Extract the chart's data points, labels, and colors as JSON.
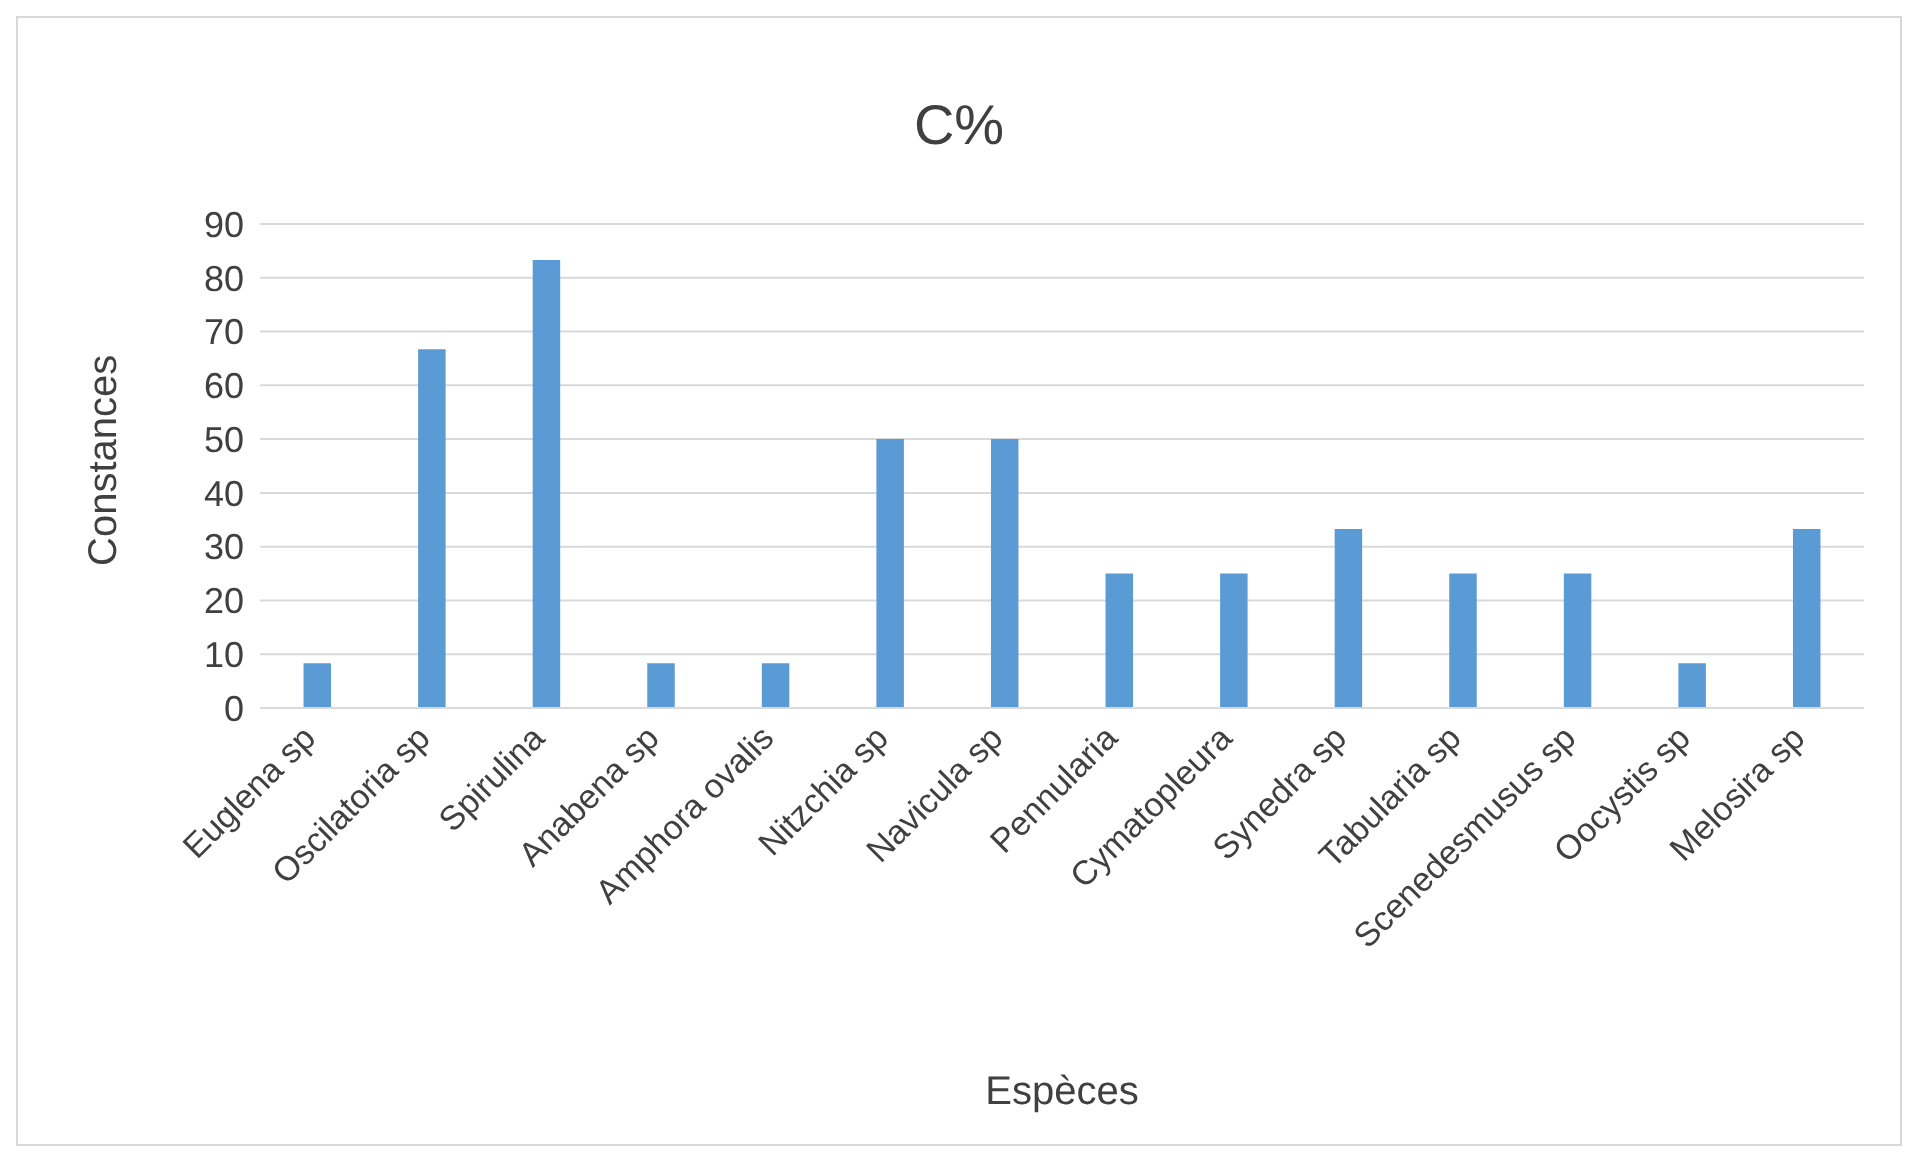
{
  "chart_data": {
    "type": "bar",
    "title": "C%",
    "xlabel": "Espèces",
    "ylabel": "Constances",
    "categories": [
      "Euglena sp",
      "Oscilatoria sp",
      "Spirulina",
      "Anabena sp",
      "Amphora ovalis",
      "Nitzchia sp",
      "Navicula sp",
      "Pennularia",
      "Cymatopleura",
      "Synedra sp",
      "Tabularia sp",
      "Scenedesmusus sp",
      "Oocystis sp",
      "Melosira sp"
    ],
    "values": [
      8.3,
      66.7,
      83.3,
      8.3,
      8.3,
      50,
      50,
      25,
      25,
      33.3,
      25,
      25,
      8.3,
      33.3
    ],
    "color": "#5b9bd5",
    "ylim": [
      0,
      90
    ],
    "yticks": [
      0,
      10,
      20,
      30,
      40,
      50,
      60,
      70,
      80,
      90
    ],
    "grid": "y",
    "legend": false
  }
}
